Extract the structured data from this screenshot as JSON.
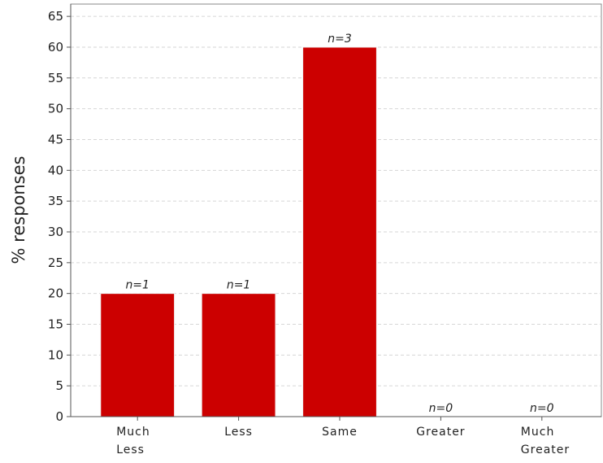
{
  "chart_data": {
    "type": "bar",
    "title": "",
    "xlabel": "",
    "ylabel": "% responses",
    "ylim": [
      0,
      67
    ],
    "yticks": [
      0,
      5,
      10,
      15,
      20,
      25,
      30,
      35,
      40,
      45,
      50,
      55,
      60,
      65
    ],
    "grid": true,
    "legend": "none",
    "bar_color": "#cc0000",
    "categories": [
      [
        "Much",
        "Less"
      ],
      [
        "Less"
      ],
      [
        "Same"
      ],
      [
        "Greater"
      ],
      [
        "Much",
        "Greater"
      ]
    ],
    "values": [
      20,
      20,
      60,
      0,
      0
    ],
    "data_labels": [
      "n=1",
      "n=1",
      "n=3",
      "n=0",
      "n=0"
    ]
  }
}
